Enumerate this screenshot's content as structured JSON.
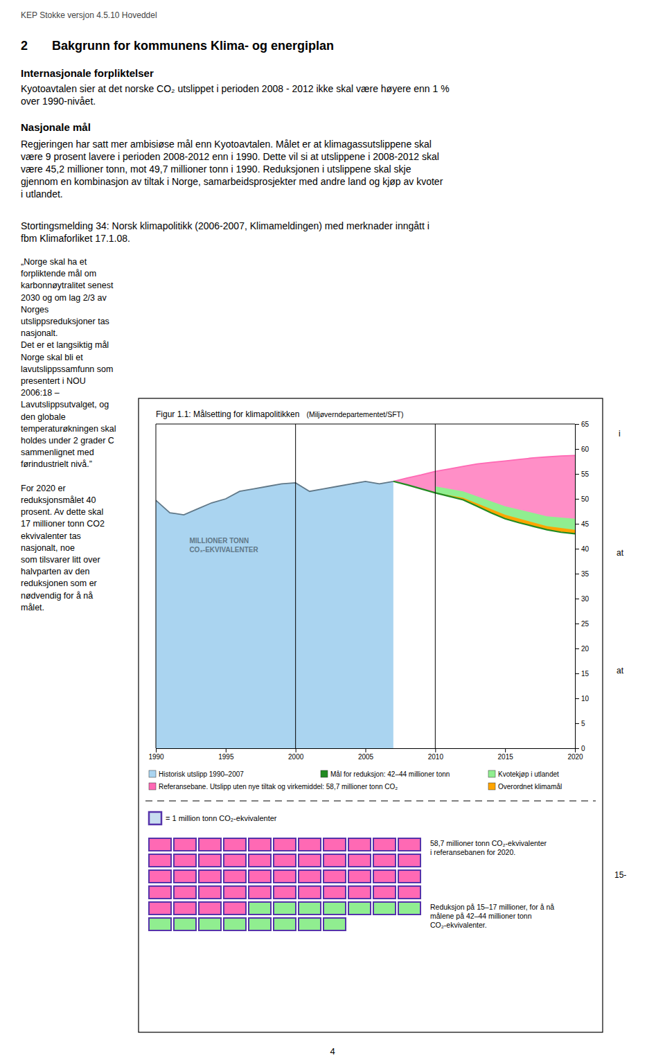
{
  "page": {
    "page_title": "KEP Stokke versjon 4.5.10 Hoveddel",
    "section_num": "2",
    "section_title": "Bakgrunn for kommunens Klima- og energiplan",
    "heading1": "Internasjonale forpliktelser",
    "para1_lines": [
      "Kyotoavtalen sier at det norske CO₂ utslippet i perioden 2008 - 2012 ikke skal være høyere enn 1 %",
      "over 1990-nivået."
    ],
    "heading2": "Nasjonale mål",
    "para2_lines": [
      "Regjeringen har satt mer ambisiøse mål enn Kyotoavtalen. Målet er at klimagassutslippene skal",
      "være 9 prosent lavere i perioden 2008-2012 enn i 1990. Dette vil si at utslippene i 2008-2012 skal",
      "være 45,2 millioner tonn, mot 49,7 millioner tonn i 1990. Reduksjonen i utslippene skal skje",
      "gjennom en kombinasjon av tiltak i Norge, samarbeidsprosjekter med andre land og kjøp av kvoter",
      "i utlandet."
    ],
    "para3_lines": [
      "Stortingsmelding 34: Norsk klimapolitikk (2006-2007, Klimameldingen) med merknader inngått i",
      "fbm Klimaforliket 17.1.08."
    ],
    "left_text_lines": [
      "„Norge skal ha et",
      "forpliktende mål om",
      "karbonnøytralitet senest",
      "2030 og om lag 2/3 av",
      "Norges",
      "utslippsreduksjoner tas",
      "nasjonalt.",
      "Det er et langsiktig mål",
      "Norge skal bli et",
      "lavutslippssamfunn som",
      "presentert i NOU",
      "2006:18 –",
      "Lavutslippsutvalget,  og",
      "den globale",
      "temperaturøkningen skal",
      "holdes under 2 grader C",
      "sammenlignet med",
      "førindustrielt nivå.”",
      "",
      "For 2020 er",
      "reduksjonsmålet 40",
      "prosent. Av dette skal",
      "17 millioner tonn CO2",
      "ekvivalenter tas",
      "nasjonalt, noe",
      "som tilsvarer litt over",
      "halvparten av den",
      "reduksjonen som er",
      "nødvendig for å nå",
      "målet."
    ],
    "margin_marks": [
      "i",
      "at",
      "at",
      "15-"
    ],
    "page_number": "4"
  },
  "chart_data": [
    {
      "type": "area",
      "title": "Figur 1.1: Målsetting for klimapolitikken",
      "subtitle": "(Miljøverndepartementet/SFT)",
      "y_label": "MILLIONER TONN\nCO₂-EKVIVALENTER",
      "xlim": [
        1990,
        2020
      ],
      "ylim": [
        0,
        65
      ],
      "xticks": [
        1990,
        1995,
        2000,
        2005,
        2010,
        2015,
        2020
      ],
      "yticks": [
        0,
        5,
        10,
        15,
        20,
        25,
        30,
        35,
        40,
        45,
        50,
        55,
        60,
        65
      ],
      "grid": false,
      "legend": "bottom",
      "vertical_lines": [
        2000,
        2010
      ],
      "series": [
        {
          "name": "Historisk utslipp 1990–2007",
          "type": "area",
          "color": "#aad4f0",
          "x": [
            1990,
            1991,
            1992,
            1993,
            1994,
            1995,
            1996,
            1997,
            1998,
            1999,
            2000,
            2001,
            2002,
            2003,
            2004,
            2005,
            2006,
            2007
          ],
          "values": [
            49.7,
            47.2,
            46.8,
            48.0,
            49.2,
            50.0,
            51.5,
            52.0,
            52.5,
            53.0,
            53.2,
            51.5,
            52.0,
            52.5,
            53.0,
            53.5,
            53.0,
            53.5
          ]
        },
        {
          "name": "Mål for reduksjon: 42–44 millioner tonn",
          "type": "line",
          "color": "#228B22",
          "x": [
            2007,
            2008,
            2009,
            2010,
            2011,
            2012,
            2013,
            2014,
            2015,
            2016,
            2017,
            2018,
            2019,
            2020
          ],
          "values": [
            53.5,
            52.8,
            52.0,
            51.2,
            50.5,
            49.8,
            48.5,
            47.2,
            46.0,
            45.2,
            44.5,
            43.8,
            43.3,
            43.0
          ]
        },
        {
          "name": "Kvotekjøp i utlandet",
          "type": "band",
          "color": "#90EE90",
          "x": [
            2010,
            2012,
            2015,
            2018,
            2020
          ],
          "values": [
            52.5,
            51.5,
            48.5,
            46.5,
            46.0
          ],
          "base": [
            51.2,
            49.8,
            46.0,
            43.8,
            43.0
          ]
        },
        {
          "name": "Referansebane. Utslipp uten nye tiltak og virkemiddel: 58,7 millioner tonn CO₂",
          "type": "area",
          "color": "#ff69b4",
          "x": [
            2007,
            2008,
            2009,
            2010,
            2011,
            2012,
            2013,
            2014,
            2015,
            2016,
            2017,
            2018,
            2019,
            2020
          ],
          "values": [
            53.5,
            54.2,
            54.8,
            55.5,
            56.0,
            56.5,
            57.0,
            57.3,
            57.6,
            57.9,
            58.2,
            58.4,
            58.6,
            58.7
          ],
          "base": [
            53.5,
            52.8,
            52.0,
            51.2,
            50.5,
            49.8,
            48.5,
            47.2,
            46.0,
            45.2,
            44.5,
            43.8,
            43.3,
            43.0
          ]
        },
        {
          "name": "Overordnet klimamål",
          "type": "band",
          "color": "#FFA500",
          "x": [
            2010,
            2012,
            2015,
            2018,
            2020
          ],
          "values": [
            51.2,
            50.2,
            46.8,
            44.5,
            43.8
          ],
          "base": [
            51.2,
            49.8,
            46.0,
            43.8,
            43.0
          ]
        }
      ]
    },
    {
      "type": "waffle",
      "scale_label": "= 1 million tonn CO₂-ekvivalenter",
      "values": [
        48,
        15
      ],
      "colors": [
        "#ff69b4",
        "#90EE90"
      ],
      "annotations": [
        "58,7 millioner tonn CO₂-ekvivalenter\ni referansebanen for 2020.",
        "Reduksjon på 15–17 millioner, for å nå\nmålene på 42–44 millioner tonn\nCO₂-ekvivalenter."
      ]
    }
  ]
}
